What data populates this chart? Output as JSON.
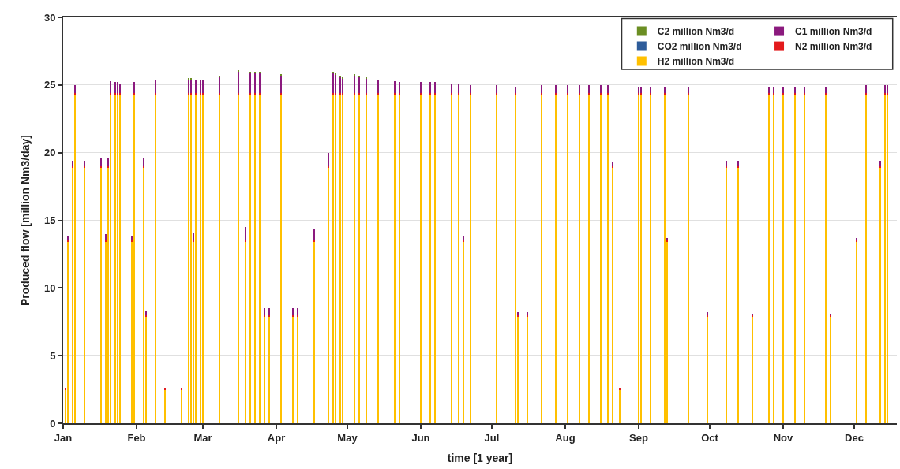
{
  "chart_data": {
    "type": "bar",
    "stacked": true,
    "xlabel": "time [1 year]",
    "ylabel": "Produced flow [million Nm3/day]",
    "x": [
      "--01-02",
      "--01-03",
      "--01-05",
      "--01-06",
      "--01-10",
      "--01-17",
      "--01-19",
      "--01-20",
      "--01-21",
      "--01-23",
      "--01-24",
      "--01-25",
      "--01-30",
      "--01-31",
      "--02-04",
      "--02-05",
      "--02-09",
      "--02-13",
      "--02-20",
      "--02-23",
      "--02-24",
      "--02-25",
      "--02-26",
      "--02-28",
      "--03-01",
      "--03-08",
      "--03-16",
      "--03-19",
      "--03-21",
      "--03-23",
      "--03-25",
      "--03-27",
      "--03-29",
      "--04-03",
      "--04-08",
      "--04-10",
      "--04-17",
      "--04-23",
      "--04-25",
      "--04-26",
      "--04-28",
      "--04-29",
      "--05-04",
      "--05-06",
      "--05-09",
      "--05-14",
      "--05-21",
      "--05-23",
      "--06-01",
      "--06-05",
      "--06-07",
      "--06-14",
      "--06-17",
      "--06-19",
      "--06-22",
      "--07-03",
      "--07-11",
      "--07-12",
      "--07-16",
      "--07-22",
      "--07-28",
      "--08-02",
      "--08-07",
      "--08-11",
      "--08-16",
      "--08-19",
      "--08-21",
      "--08-24",
      "--09-01",
      "--09-02",
      "--09-06",
      "--09-12",
      "--09-13",
      "--09-22",
      "--09-30",
      "--10-08",
      "--10-13",
      "--10-19",
      "--10-26",
      "--10-28",
      "--11-01",
      "--11-06",
      "--11-10",
      "--11-19",
      "--11-21",
      "--12-02",
      "--12-06",
      "--12-12",
      "--12-14",
      "--12-15"
    ],
    "series": [
      {
        "name": "H2 million Nm3/d",
        "color": "#ffc000",
        "values": [
          2.5,
          13.4,
          18.9,
          24.3,
          18.9,
          18.9,
          13.4,
          18.9,
          24.3,
          24.3,
          24.3,
          24.3,
          13.4,
          24.3,
          18.9,
          7.9,
          24.3,
          2.5,
          2.5,
          24.3,
          24.3,
          13.4,
          24.3,
          24.3,
          24.3,
          24.3,
          24.3,
          13.4,
          24.3,
          24.3,
          24.3,
          7.9,
          7.9,
          24.3,
          7.9,
          7.9,
          13.4,
          18.9,
          24.3,
          24.3,
          24.3,
          24.3,
          24.3,
          24.3,
          24.3,
          24.3,
          24.3,
          24.3,
          24.3,
          24.3,
          24.3,
          24.3,
          24.3,
          13.4,
          24.3,
          24.3,
          24.3,
          7.9,
          7.9,
          24.3,
          24.3,
          24.3,
          24.3,
          24.3,
          24.3,
          24.3,
          18.9,
          2.5,
          24.3,
          24.3,
          24.3,
          24.3,
          13.4,
          24.3,
          7.9,
          18.9,
          18.9,
          7.9,
          24.3,
          24.3,
          24.3,
          24.3,
          24.3,
          24.3,
          7.9,
          13.4,
          24.3,
          18.9,
          24.3,
          24.3
        ]
      },
      {
        "name": "N2 million Nm3/d",
        "color": "#e31a1c",
        "values": [
          0.1,
          0.1,
          0.1,
          0.1,
          0.1,
          0.1,
          0.1,
          0.1,
          0.1,
          0.1,
          0.1,
          0.1,
          0.1,
          0.1,
          0.1,
          0.1,
          0.1,
          0.1,
          0.1,
          0.1,
          0.1,
          0.1,
          0.1,
          0.1,
          0.1,
          0.1,
          0.1,
          0.1,
          0.1,
          0.1,
          0.1,
          0.1,
          0.1,
          0.1,
          0.1,
          0.1,
          0.1,
          0.1,
          0.1,
          0.1,
          0.1,
          0.1,
          0.1,
          0.1,
          0.1,
          0.1,
          0.1,
          0.1,
          0.1,
          0.1,
          0.1,
          0.1,
          0.1,
          0.1,
          0.1,
          0.1,
          0.1,
          0.1,
          0.1,
          0.1,
          0.1,
          0.1,
          0.1,
          0.1,
          0.1,
          0.1,
          0.1,
          0.1,
          0.1,
          0.1,
          0.1,
          0.1,
          0.1,
          0.1,
          0.1,
          0.1,
          0.1,
          0.1,
          0.1,
          0.1,
          0.1,
          0.1,
          0.1,
          0.1,
          0.1,
          0.1,
          0.1,
          0.1,
          0.1,
          0.1
        ]
      },
      {
        "name": "CO2 million Nm3/d",
        "color": "#2e5c9a",
        "values": [
          null,
          null,
          null,
          null,
          null,
          null,
          null,
          null,
          null,
          null,
          null,
          null,
          null,
          null,
          null,
          null,
          null,
          null,
          null,
          null,
          null,
          null,
          null,
          null,
          null,
          null,
          null,
          null,
          null,
          null,
          null,
          null,
          null,
          null,
          null,
          null,
          null,
          null,
          null,
          null,
          null,
          null,
          null,
          null,
          null,
          null,
          null,
          null,
          null,
          null,
          null,
          null,
          null,
          null,
          null,
          null,
          null,
          null,
          null,
          null,
          null,
          null,
          null,
          null,
          null,
          null,
          null,
          null,
          null,
          null,
          null,
          null,
          null,
          null,
          null,
          null,
          null,
          null,
          null,
          null,
          null,
          null,
          null,
          null,
          null,
          null,
          null,
          null,
          null,
          null
        ]
      },
      {
        "name": "C1 million Nm3/d",
        "color": "#8b1a7e",
        "values": [
          0,
          0.3,
          0.4,
          0.6,
          0.4,
          0.6,
          0.5,
          0.6,
          0.9,
          0.8,
          0.8,
          0.7,
          0.3,
          0.8,
          0.6,
          0.3,
          1.0,
          0,
          0,
          1.0,
          1.0,
          0.6,
          1.0,
          1.0,
          1.0,
          1.2,
          1.6,
          1.0,
          1.5,
          1.5,
          1.5,
          0.5,
          0.5,
          1.3,
          0.5,
          0.5,
          0.9,
          1.0,
          1.5,
          1.4,
          1.2,
          1.1,
          1.3,
          1.2,
          1.1,
          1.0,
          0.9,
          0.8,
          0.8,
          0.8,
          0.8,
          0.7,
          0.7,
          0.3,
          0.6,
          0.6,
          0.5,
          0.2,
          0.2,
          0.6,
          0.6,
          0.6,
          0.6,
          0.6,
          0.6,
          0.6,
          0.3,
          0,
          0.5,
          0.5,
          0.5,
          0.4,
          0.2,
          0.5,
          0.2,
          0.4,
          0.4,
          0.1,
          0.5,
          0.5,
          0.5,
          0.5,
          0.5,
          0.5,
          0.1,
          0.2,
          0.6,
          0.4,
          0.6,
          0.6
        ]
      },
      {
        "name": "C2 million Nm3/d",
        "color": "#6b8e23",
        "values": [
          0,
          0,
          0,
          0,
          0,
          0,
          0,
          0,
          0,
          0,
          0,
          0,
          0,
          0,
          0,
          0,
          0,
          0,
          0,
          0.1,
          0.1,
          0,
          0,
          0,
          0,
          0.1,
          0.1,
          0,
          0.1,
          0.1,
          0.1,
          0,
          0,
          0.1,
          0,
          0,
          0,
          0,
          0.1,
          0.1,
          0.1,
          0.1,
          0.1,
          0.1,
          0.1,
          0,
          0,
          0,
          0,
          0,
          0,
          0,
          0,
          0,
          0,
          0,
          0,
          0,
          0,
          0,
          0,
          0,
          0,
          0,
          0,
          0,
          0,
          0,
          0,
          0,
          0,
          0,
          0,
          0,
          0,
          0,
          0,
          0,
          0,
          0,
          0,
          0,
          0,
          0,
          0,
          0,
          0,
          0,
          0,
          0
        ]
      }
    ],
    "xlim": [
      "--01-01",
      "--12-19"
    ],
    "xticks": [
      {
        "value": "--01-01",
        "label": "Jan"
      },
      {
        "value": "--02-01",
        "label": "Feb"
      },
      {
        "value": "--03-01",
        "label": "Mar"
      },
      {
        "value": "--04-01",
        "label": "Apr"
      },
      {
        "value": "--05-01",
        "label": "May"
      },
      {
        "value": "--06-01",
        "label": "Jun"
      },
      {
        "value": "--07-01",
        "label": "Jul"
      },
      {
        "value": "--08-01",
        "label": "Aug"
      },
      {
        "value": "--09-01",
        "label": "Sep"
      },
      {
        "value": "--10-01",
        "label": "Oct"
      },
      {
        "value": "--11-01",
        "label": "Nov"
      },
      {
        "value": "--12-01",
        "label": "Dec"
      }
    ],
    "ylim": [
      0,
      30
    ],
    "yticks": [
      0,
      5,
      10,
      15,
      20,
      25,
      30
    ],
    "grid": "y",
    "legend": "top right"
  }
}
